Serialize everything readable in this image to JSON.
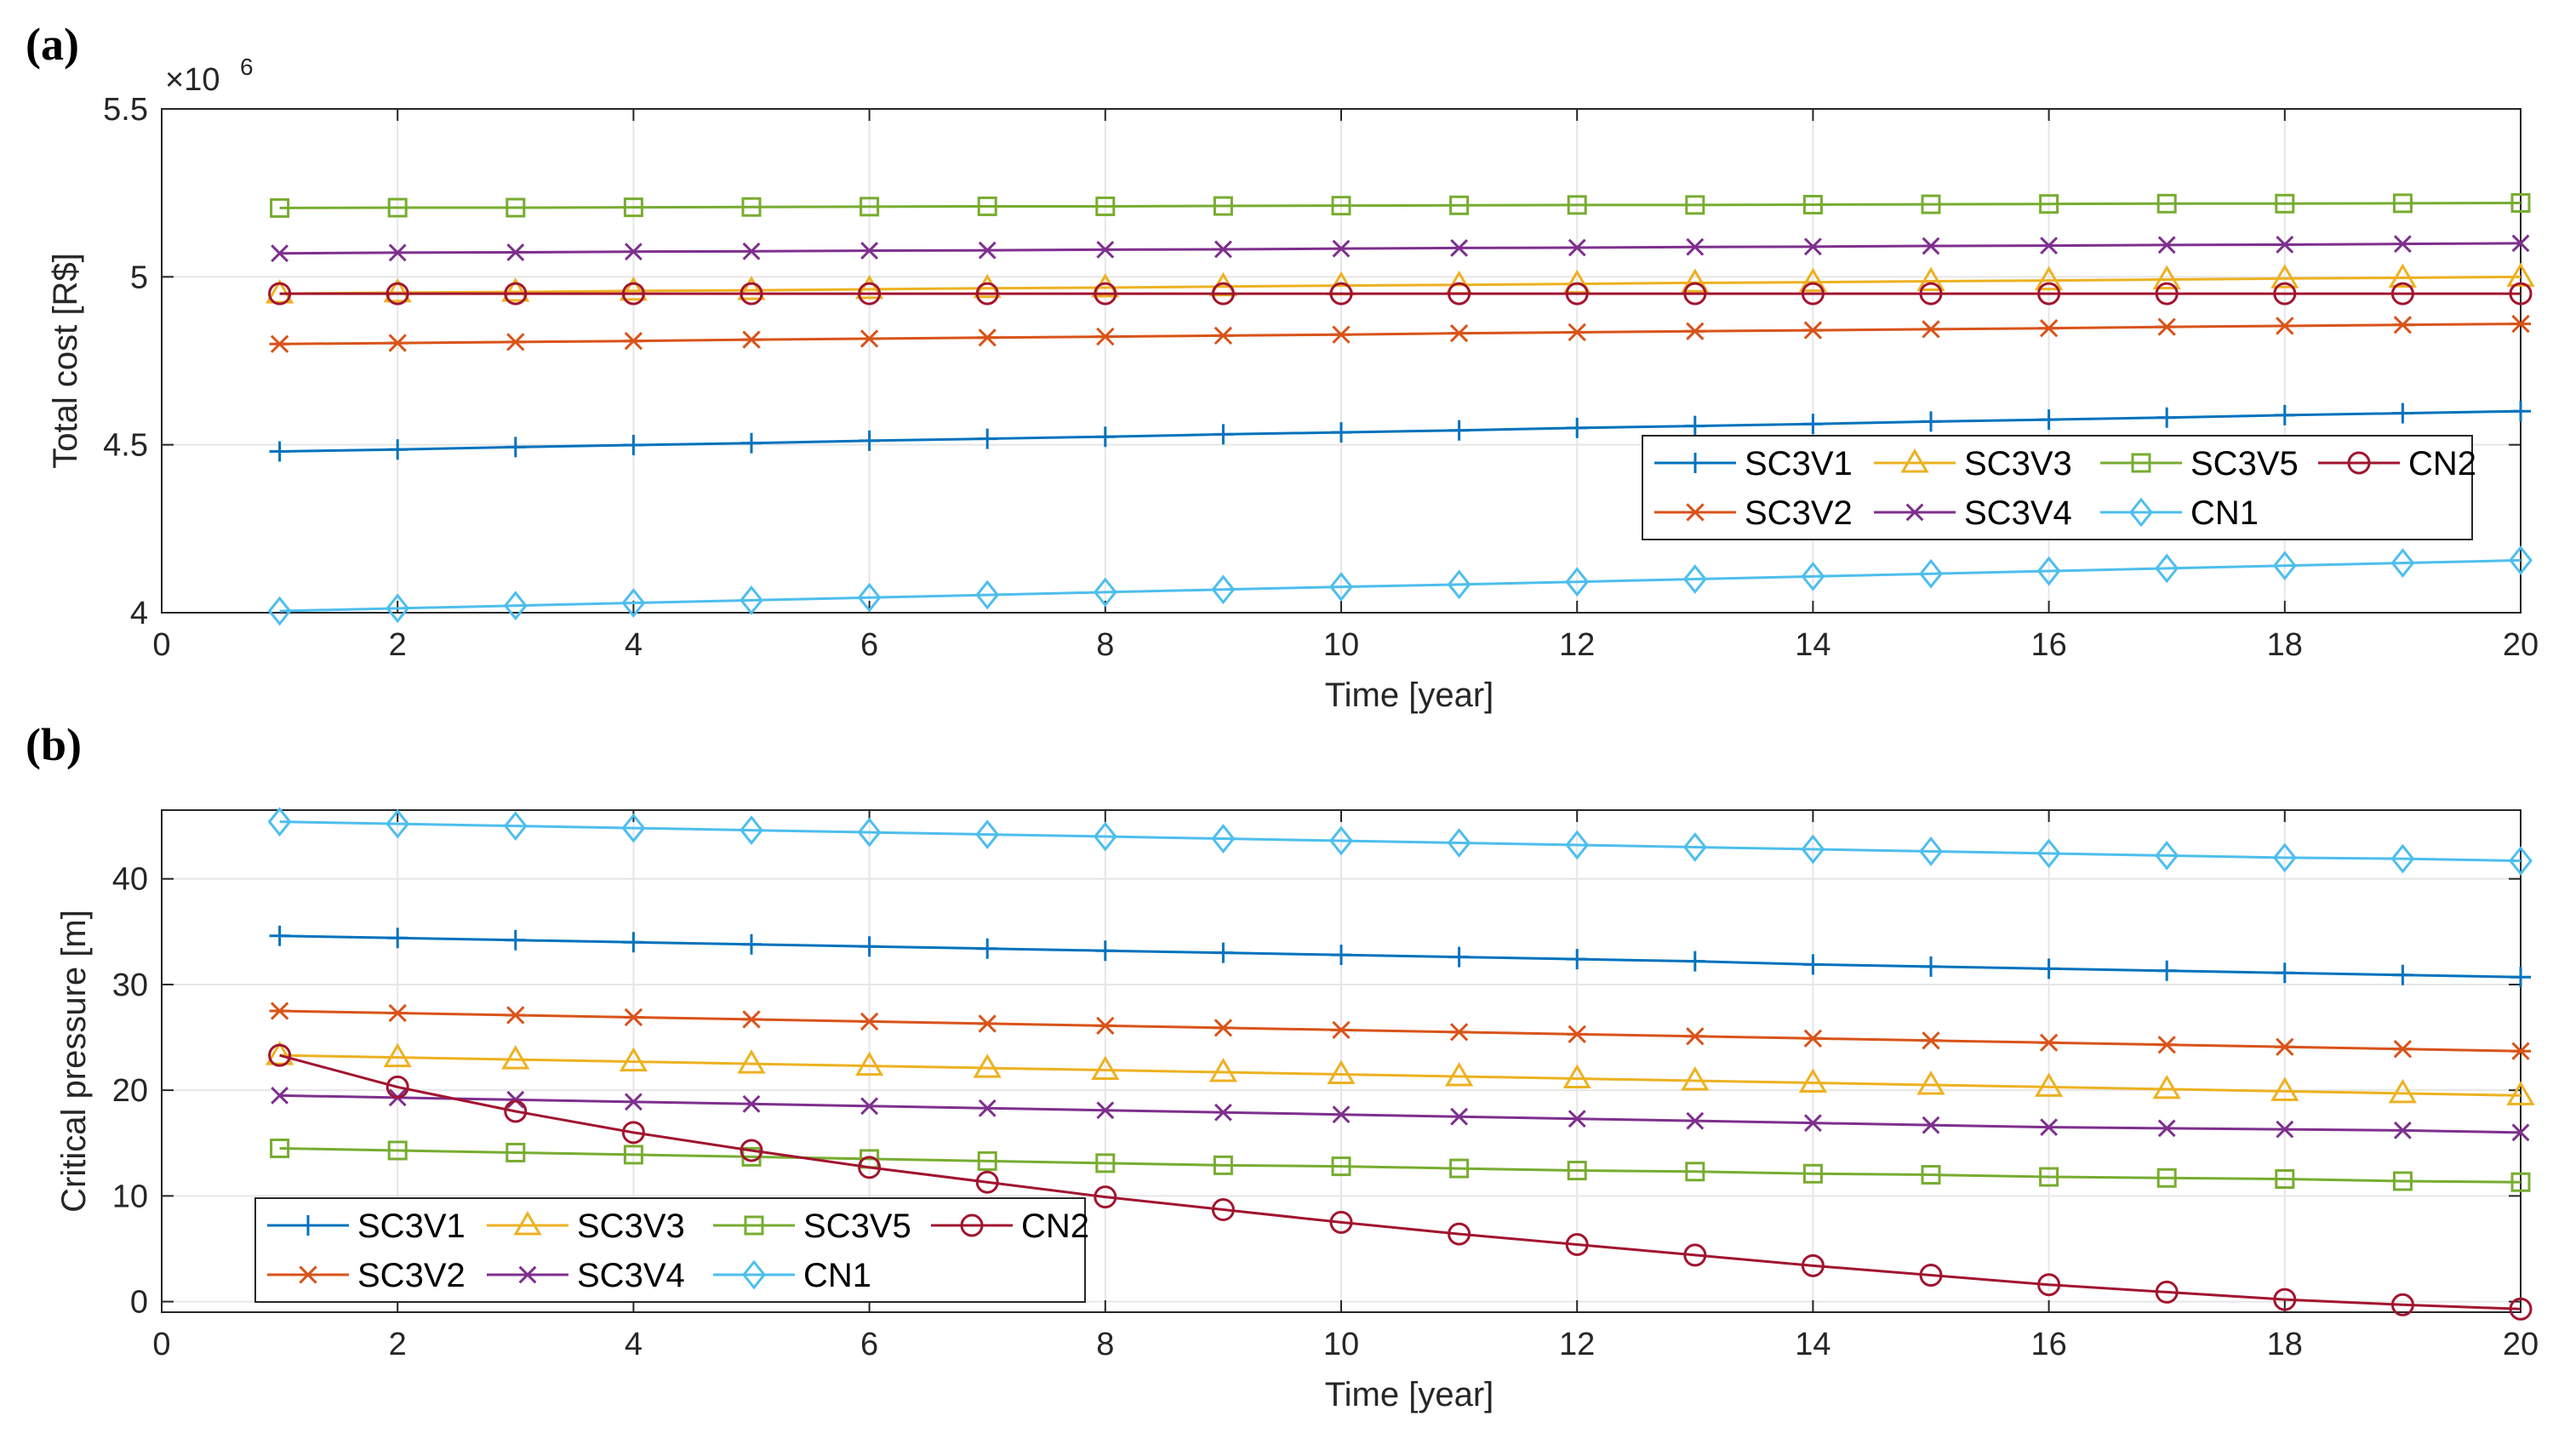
{
  "chart_data": [
    {
      "panel_label": "(a)",
      "type": "line",
      "xlabel": "Time [year]",
      "ylabel": "Total cost [R$]",
      "exponent_label": "×10",
      "exponent_power": "6",
      "xlim": [
        0,
        20
      ],
      "ylim": [
        4,
        5.5
      ],
      "xticks": [
        "0",
        "2",
        "4",
        "6",
        "8",
        "10",
        "12",
        "14",
        "16",
        "18",
        "20"
      ],
      "yticks": [
        "4",
        "4.5",
        "5",
        "5.5"
      ],
      "grid": true,
      "legend_position": "bottom-right",
      "x": [
        1,
        2,
        3,
        4,
        5,
        6,
        7,
        8,
        9,
        10,
        11,
        12,
        13,
        14,
        15,
        16,
        17,
        18,
        19,
        20
      ],
      "series": [
        {
          "name": "SC3V1",
          "color": "#0072BD",
          "marker": "plus",
          "values": [
            4.48,
            4.486,
            4.493,
            4.499,
            4.505,
            4.512,
            4.518,
            4.524,
            4.531,
            4.537,
            4.543,
            4.55,
            4.556,
            4.562,
            4.569,
            4.575,
            4.581,
            4.588,
            4.594,
            4.6
          ]
        },
        {
          "name": "SC3V2",
          "color": "#D95319",
          "marker": "asterisk",
          "values": [
            4.8,
            4.803,
            4.806,
            4.809,
            4.813,
            4.816,
            4.819,
            4.822,
            4.825,
            4.828,
            4.832,
            4.835,
            4.838,
            4.841,
            4.844,
            4.847,
            4.851,
            4.854,
            4.857,
            4.86
          ]
        },
        {
          "name": "SC3V3",
          "color": "#EDB120",
          "marker": "triangle",
          "values": [
            4.95,
            4.953,
            4.955,
            4.958,
            4.96,
            4.963,
            4.966,
            4.968,
            4.971,
            4.974,
            4.976,
            4.979,
            4.982,
            4.984,
            4.987,
            4.989,
            4.992,
            4.995,
            4.997,
            5.0
          ]
        },
        {
          "name": "SC3V4",
          "color": "#7E2F8E",
          "marker": "x",
          "values": [
            5.07,
            5.072,
            5.073,
            5.075,
            5.076,
            5.078,
            5.079,
            5.081,
            5.082,
            5.084,
            5.086,
            5.087,
            5.089,
            5.09,
            5.092,
            5.093,
            5.095,
            5.096,
            5.098,
            5.1
          ]
        },
        {
          "name": "SC3V5",
          "color": "#77AC30",
          "marker": "square",
          "values": [
            5.205,
            5.206,
            5.206,
            5.207,
            5.208,
            5.209,
            5.21,
            5.21,
            5.211,
            5.212,
            5.213,
            5.214,
            5.214,
            5.215,
            5.216,
            5.217,
            5.218,
            5.218,
            5.219,
            5.22
          ]
        },
        {
          "name": "CN1",
          "color": "#4DBEEE",
          "marker": "diamond",
          "values": [
            4.005,
            4.013,
            4.021,
            4.029,
            4.037,
            4.045,
            4.053,
            4.061,
            4.069,
            4.077,
            4.084,
            4.092,
            4.1,
            4.108,
            4.116,
            4.124,
            4.132,
            4.14,
            4.148,
            4.156
          ]
        },
        {
          "name": "CN2",
          "color": "#A2142F",
          "marker": "circle",
          "values": [
            4.95,
            4.95,
            4.95,
            4.95,
            4.95,
            4.95,
            4.95,
            4.95,
            4.95,
            4.95,
            4.95,
            4.95,
            4.95,
            4.95,
            4.95,
            4.95,
            4.95,
            4.95,
            4.95,
            4.95
          ]
        }
      ],
      "legend": [
        [
          "SC3V1",
          "SC3V3",
          "SC3V5",
          "CN2"
        ],
        [
          "SC3V2",
          "SC3V4",
          "CN1"
        ]
      ]
    },
    {
      "panel_label": "(b)",
      "type": "line",
      "xlabel": "Time [year]",
      "ylabel": "Critical pressure [m]",
      "xlim": [
        0,
        20
      ],
      "ylim": [
        -1,
        46.5
      ],
      "xticks": [
        "0",
        "2",
        "4",
        "6",
        "8",
        "10",
        "12",
        "14",
        "16",
        "18",
        "20"
      ],
      "yticks": [
        "0",
        "10",
        "20",
        "30",
        "40"
      ],
      "grid": true,
      "legend_position": "bottom-left",
      "x": [
        1,
        2,
        3,
        4,
        5,
        6,
        7,
        8,
        9,
        10,
        11,
        12,
        13,
        14,
        15,
        16,
        17,
        18,
        19,
        20
      ],
      "series": [
        {
          "name": "SC3V1",
          "color": "#0072BD",
          "marker": "plus",
          "values": [
            34.6,
            34.4,
            34.2,
            34.0,
            33.8,
            33.6,
            33.4,
            33.2,
            33.0,
            32.8,
            32.6,
            32.4,
            32.2,
            31.9,
            31.7,
            31.5,
            31.3,
            31.1,
            30.9,
            30.7
          ]
        },
        {
          "name": "SC3V2",
          "color": "#D95319",
          "marker": "asterisk",
          "values": [
            27.5,
            27.3,
            27.1,
            26.9,
            26.7,
            26.5,
            26.3,
            26.1,
            25.9,
            25.7,
            25.5,
            25.3,
            25.1,
            24.9,
            24.7,
            24.5,
            24.3,
            24.1,
            23.9,
            23.7
          ]
        },
        {
          "name": "SC3V3",
          "color": "#EDB120",
          "marker": "triangle",
          "values": [
            23.3,
            23.1,
            22.9,
            22.7,
            22.5,
            22.3,
            22.1,
            21.9,
            21.7,
            21.5,
            21.3,
            21.1,
            20.9,
            20.7,
            20.5,
            20.3,
            20.1,
            19.9,
            19.7,
            19.5
          ]
        },
        {
          "name": "SC3V4",
          "color": "#7E2F8E",
          "marker": "x",
          "values": [
            19.5,
            19.3,
            19.1,
            18.9,
            18.7,
            18.5,
            18.3,
            18.1,
            17.9,
            17.7,
            17.5,
            17.3,
            17.1,
            16.9,
            16.7,
            16.5,
            16.4,
            16.3,
            16.2,
            16.0
          ]
        },
        {
          "name": "SC3V5",
          "color": "#77AC30",
          "marker": "square",
          "values": [
            14.5,
            14.3,
            14.1,
            13.9,
            13.7,
            13.5,
            13.3,
            13.1,
            12.9,
            12.8,
            12.6,
            12.4,
            12.3,
            12.1,
            12.0,
            11.8,
            11.7,
            11.6,
            11.4,
            11.3
          ]
        },
        {
          "name": "CN1",
          "color": "#4DBEEE",
          "marker": "diamond",
          "values": [
            45.4,
            45.2,
            45.0,
            44.8,
            44.6,
            44.4,
            44.2,
            44.0,
            43.8,
            43.6,
            43.4,
            43.2,
            43.0,
            42.8,
            42.6,
            42.4,
            42.2,
            42.0,
            41.9,
            41.7
          ]
        },
        {
          "name": "CN2",
          "color": "#A2142F",
          "marker": "circle",
          "values": [
            23.3,
            20.3,
            18.0,
            16.0,
            14.3,
            12.7,
            11.3,
            9.9,
            8.7,
            7.5,
            6.4,
            5.4,
            4.4,
            3.4,
            2.5,
            1.6,
            0.9,
            0.2,
            -0.3,
            -0.7
          ]
        }
      ],
      "legend": [
        [
          "SC3V1",
          "SC3V3",
          "SC3V5",
          "CN2"
        ],
        [
          "SC3V2",
          "SC3V4",
          "CN1"
        ]
      ]
    }
  ]
}
